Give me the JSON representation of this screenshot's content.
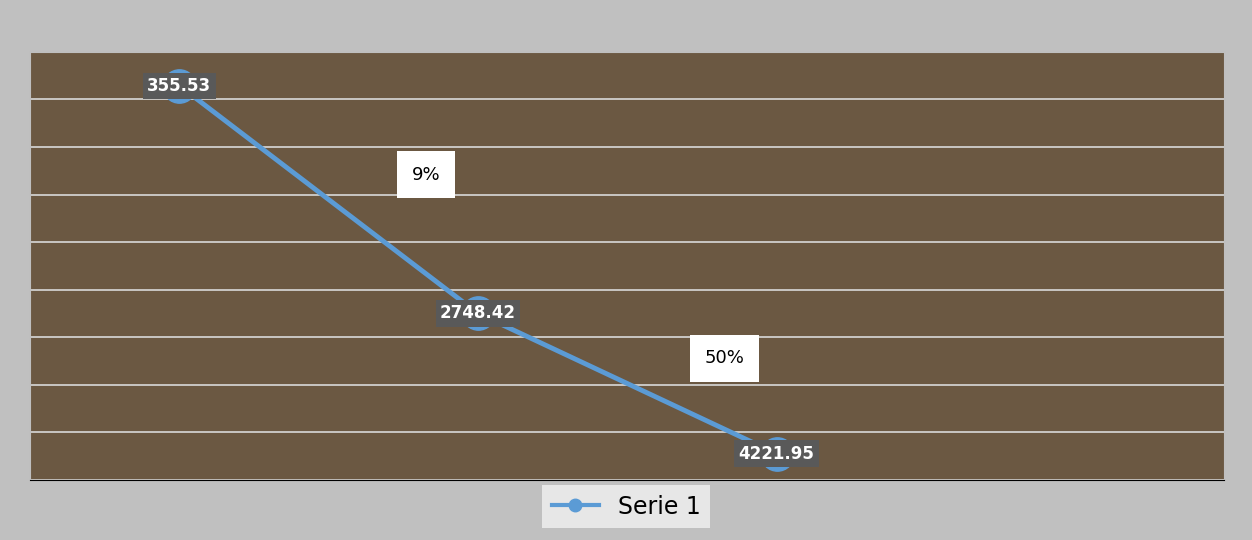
{
  "chart_data": {
    "type": "line",
    "categories": [
      null,
      null,
      null
    ],
    "series": [
      {
        "name": "Serie 1",
        "color": "#5b9bd5",
        "marker": "o",
        "line_style": "solid",
        "values": [
          355.53,
          2748.42,
          4221.95
        ]
      }
    ],
    "annotations": [
      "9%",
      "50%"
    ],
    "ylim": [
      4500,
      0
    ],
    "yticks": [
      0,
      500,
      1000,
      1500,
      2000,
      2500,
      3000,
      3500,
      4000,
      4500
    ],
    "grid": true,
    "data_labels": true,
    "tick_labels": false,
    "legend": "lower center"
  }
}
